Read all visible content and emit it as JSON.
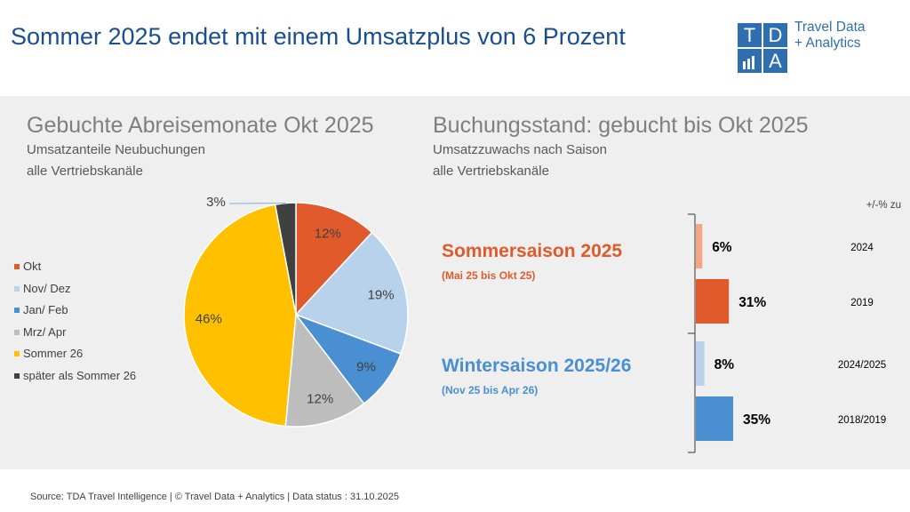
{
  "header": {
    "title": "Sommer 2025 endet mit einem Umsatzplus von 6 Prozent",
    "logo_letters": [
      "T",
      "D",
      "A"
    ],
    "logo_line1": "Travel Data",
    "logo_line2": "+ Analytics"
  },
  "left": {
    "title": "Gebuchte Abreisemonate Okt 2025",
    "subtitle1": "Umsatzanteile Neubuchungen",
    "subtitle2": "alle Vertriebskanäle"
  },
  "right": {
    "title": "Buchungsstand: gebucht bis Okt 2025",
    "subtitle1": "Umsatzzuwachs nach Saison",
    "subtitle2": "alle Vertriebskanäle",
    "column_header": "+/-% zu",
    "summer_title": "Sommersaison 2025",
    "summer_range": "(Mai 25 bis Okt 25)",
    "winter_title": "Wintersaison 2025/26",
    "winter_range": "(Nov 25 bis Apr 26)"
  },
  "colors": {
    "summer_accent": "#e05a2b",
    "winter_accent": "#4a8fd1"
  },
  "chart_data": [
    {
      "type": "pie",
      "title": "Gebuchte Abreisemonate Okt 2025",
      "categories": [
        "Okt",
        "Nov/ Dez",
        "Jan/ Feb",
        "Mrz/ Apr",
        "Sommer 26",
        "später als Sommer 26"
      ],
      "values": [
        12,
        19,
        9,
        12,
        46,
        3
      ],
      "labels": [
        "12%",
        "19%",
        "9%",
        "12%",
        "46%",
        "3%"
      ],
      "colors": [
        "#e05a2b",
        "#b8d2ec",
        "#4a8fd1",
        "#bdbdbd",
        "#ffc000",
        "#404040"
      ],
      "legend_position": "left"
    },
    {
      "type": "bar",
      "orientation": "horizontal",
      "title": "Buchungsstand: gebucht bis Okt 2025",
      "categories": [
        "2024",
        "2019",
        "2024/2025",
        "2018/2019"
      ],
      "values": [
        6,
        31,
        8,
        35
      ],
      "labels": [
        "6%",
        "31%",
        "8%",
        "35%"
      ],
      "colors": [
        "#f4a582",
        "#e05a2b",
        "#b8d2ec",
        "#4a8fd1"
      ],
      "groups": [
        "Sommersaison 2025",
        "Sommersaison 2025",
        "Wintersaison 2025/26",
        "Wintersaison 2025/26"
      ]
    }
  ],
  "footer": "Source: TDA Travel Intelligence   |   © Travel Data + Analytics   | Data status : 31.10.2025"
}
